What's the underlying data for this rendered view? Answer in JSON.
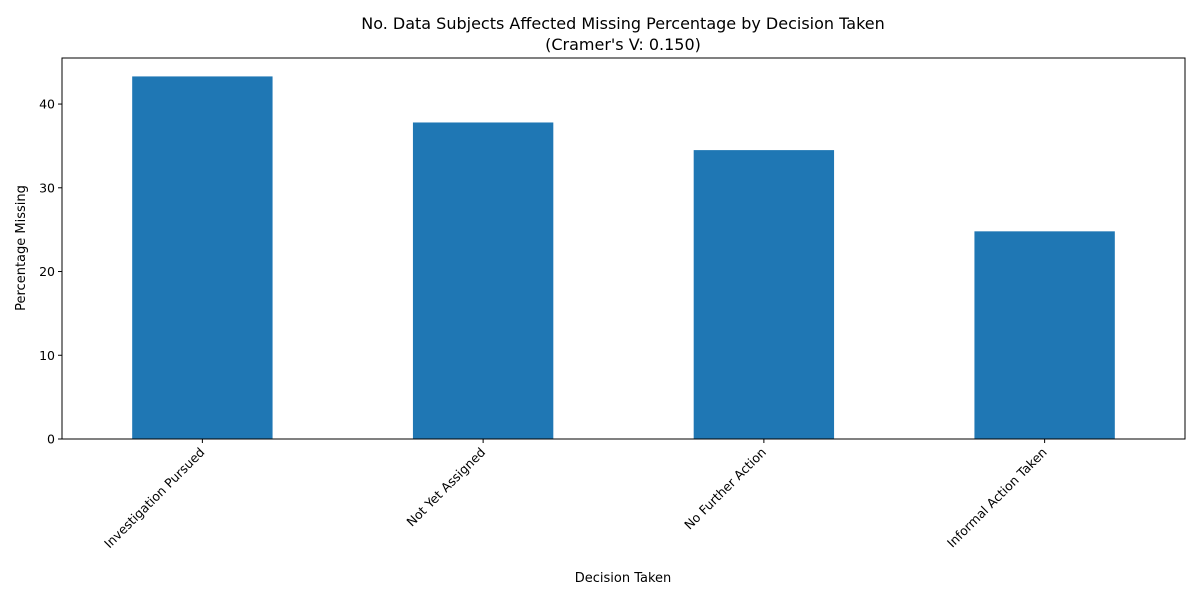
{
  "chart_data": {
    "type": "bar",
    "title": "No. Data Subjects Affected Missing Percentage by Decision Taken",
    "subtitle": "(Cramer's V: 0.150)",
    "xlabel": "Decision Taken",
    "ylabel": "Percentage Missing",
    "categories": [
      "Investigation Pursued",
      "Not Yet Assigned",
      "No Further Action",
      "Informal Action Taken"
    ],
    "values": [
      43.3,
      37.8,
      34.5,
      24.8
    ],
    "ylim": [
      0,
      45.5
    ],
    "yticks": [
      0,
      10,
      20,
      30,
      40
    ],
    "ytick_labels": [
      "0",
      "10",
      "20",
      "30",
      "40"
    ],
    "grid": false,
    "legend": "none",
    "bar_color": "#1f77b4"
  }
}
